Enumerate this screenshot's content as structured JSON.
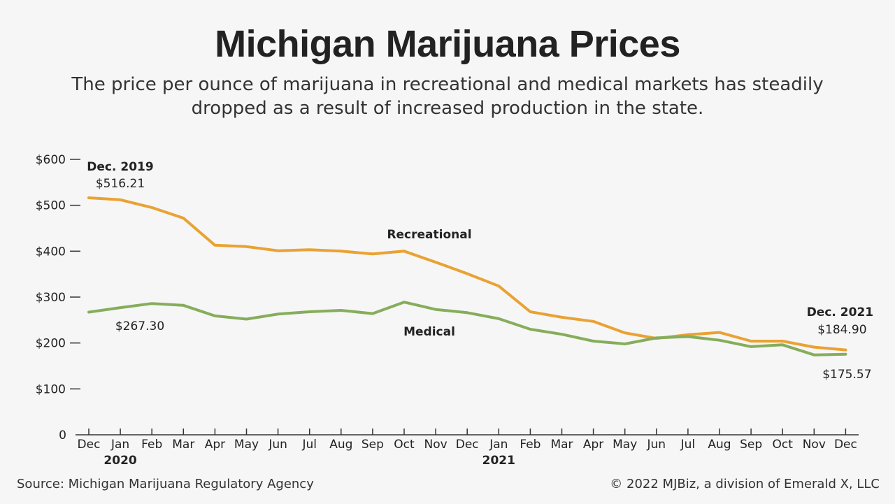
{
  "title": "Michigan Marijuana Prices",
  "subtitle": "The price per ounce of marijuana in recreational and medical markets has steadily dropped as a result of increased production in the state.",
  "source": "Source: Michigan Marijuana Regulatory Agency",
  "credit": "© 2022 MJBiz, a division of Emerald X, LLC",
  "colors": {
    "recreational": "#e9a233",
    "medical": "#86ad5b",
    "axis": "#333333"
  },
  "chart_data": {
    "type": "line",
    "title": "Michigan Marijuana Prices",
    "x": [
      "Dec",
      "Jan",
      "Feb",
      "Mar",
      "Apr",
      "May",
      "Jun",
      "Jul",
      "Aug",
      "Sep",
      "Oct",
      "Nov",
      "Dec",
      "Jan",
      "Feb",
      "Mar",
      "Apr",
      "May",
      "Jun",
      "Jul",
      "Aug",
      "Sep",
      "Oct",
      "Nov",
      "Dec"
    ],
    "year_labels": [
      {
        "index": 1,
        "label": "2020"
      },
      {
        "index": 13,
        "label": "2021"
      }
    ],
    "y_ticks": [
      {
        "value": 0,
        "label": "0"
      },
      {
        "value": 100,
        "label": "$100"
      },
      {
        "value": 200,
        "label": "$200"
      },
      {
        "value": 300,
        "label": "$300"
      },
      {
        "value": 400,
        "label": "$400"
      },
      {
        "value": 500,
        "label": "$500"
      },
      {
        "value": 600,
        "label": "$600"
      }
    ],
    "ylim": [
      0,
      600
    ],
    "grid": false,
    "series": [
      {
        "name": "Recreational",
        "color": "#e9a233",
        "values": [
          516.21,
          512,
          495,
          472,
          413,
          410,
          401,
          403,
          400,
          394,
          400,
          376,
          351,
          324,
          268,
          256,
          247,
          222,
          210,
          218,
          223,
          204,
          204,
          191,
          184.9
        ]
      },
      {
        "name": "Medical",
        "color": "#86ad5b",
        "values": [
          267.3,
          277,
          286,
          282,
          259,
          252,
          263,
          268,
          271,
          264,
          289,
          273,
          266,
          253,
          230,
          219,
          204,
          198,
          211,
          214,
          206,
          192,
          196,
          174,
          175.57
        ]
      }
    ],
    "annotations": [
      {
        "series": 0,
        "index": 0,
        "title": "Dec. 2019",
        "value": "$516.21",
        "placement": "above"
      },
      {
        "series": 1,
        "index": 0,
        "title": "",
        "value": "$267.30",
        "placement": "below"
      },
      {
        "series": 0,
        "index": 24,
        "title": "Dec. 2021",
        "value": "$184.90",
        "placement": "above"
      },
      {
        "series": 1,
        "index": 24,
        "title": "",
        "value": "$175.57",
        "placement": "below"
      }
    ]
  }
}
